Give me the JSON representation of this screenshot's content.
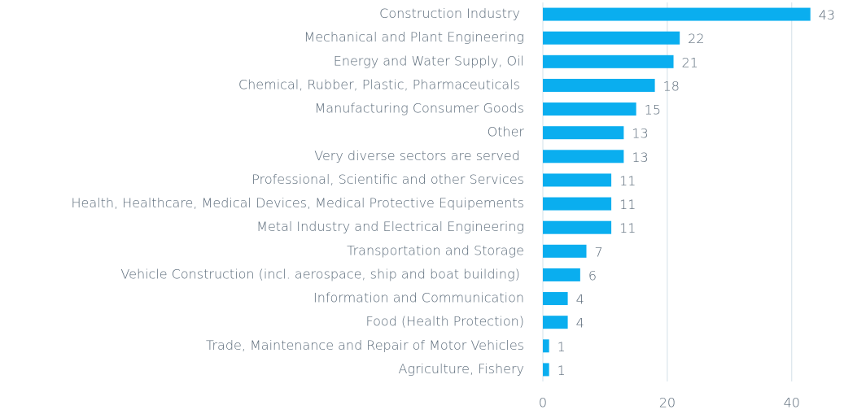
{
  "chart_data": {
    "type": "barh",
    "categories": [
      "Construction Industry ",
      "Mechanical and Plant Engineering",
      "Energy and Water Supply, Oil",
      "Chemical, Rubber, Plastic, Pharmaceuticals ",
      "Manufacturing Consumer Goods",
      "Other",
      "Very diverse sectors are served ",
      "Professional, Scientific and other Services",
      "Health, Healthcare, Medical Devices, Medical Protective Equipements",
      "Metal Industry and Electrical Engineering",
      "Transportation and Storage",
      "Vehicle Construction (incl. aerospace, ship and boat building) ",
      "Information and Communication",
      "Food (Health Protection)",
      "Trade, Maintenance and Repair of Motor Vehicles",
      "Agriculture, Fishery"
    ],
    "values": [
      43,
      22,
      21,
      18,
      15,
      13,
      13,
      11,
      11,
      11,
      7,
      6,
      4,
      4,
      1,
      1
    ],
    "color": "#0aaeef",
    "xlim": [
      0,
      45
    ],
    "xticks": [
      0,
      20,
      40
    ],
    "grid": true
  }
}
